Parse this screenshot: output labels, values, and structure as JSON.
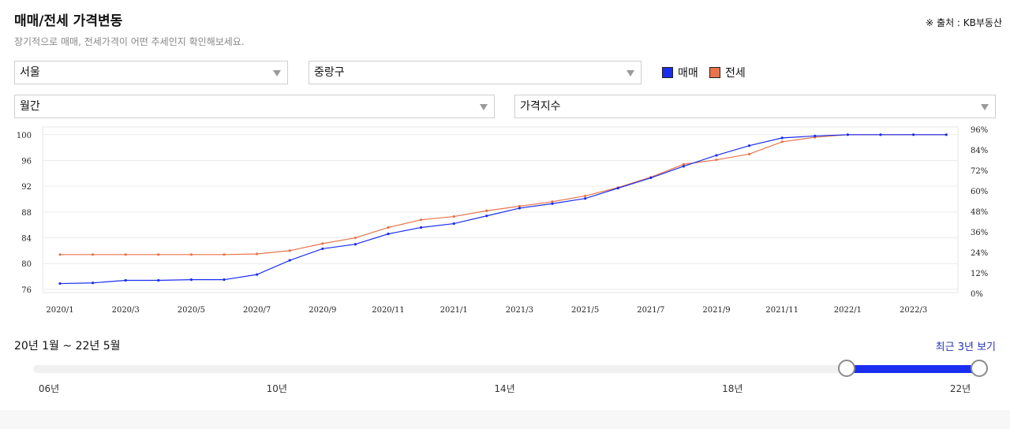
{
  "header": {
    "title": "매매/전세 가격변동",
    "source": "※ 출처 : KB부동산",
    "subtitle": "장기적으로 매매, 전세가격이 어떤 추세인지 확인해보세요."
  },
  "filters": {
    "region": "서울",
    "district": "중랑구",
    "period_type": "월간",
    "metric": "가격지수"
  },
  "legend": [
    {
      "label": "매매",
      "color": "#1a2ef0"
    },
    {
      "label": "전세",
      "color": "#e8744a"
    }
  ],
  "chart_data": {
    "type": "line",
    "x": [
      "2020/1",
      "2020/2",
      "2020/3",
      "2020/4",
      "2020/5",
      "2020/6",
      "2020/7",
      "2020/8",
      "2020/9",
      "2020/10",
      "2020/11",
      "2020/12",
      "2021/1",
      "2021/2",
      "2021/3",
      "2021/4",
      "2021/5",
      "2021/6",
      "2021/7",
      "2021/8",
      "2021/9",
      "2021/10",
      "2021/11",
      "2021/12",
      "2022/1",
      "2022/2",
      "2022/3",
      "2022/4"
    ],
    "x_tick_labels": [
      "2020/1",
      "2020/3",
      "2020/5",
      "2020/7",
      "2020/9",
      "2020/11",
      "2021/1",
      "2021/3",
      "2021/5",
      "2021/7",
      "2021/9",
      "2021/11",
      "2022/1",
      "2022/3"
    ],
    "series": [
      {
        "name": "매매",
        "color": "#1a2ef0",
        "values": [
          76.9,
          77.0,
          77.4,
          77.4,
          77.5,
          77.5,
          78.3,
          80.5,
          82.3,
          83.0,
          84.6,
          85.6,
          86.2,
          87.4,
          88.6,
          89.3,
          90.1,
          91.7,
          93.3,
          95.1,
          96.8,
          98.3,
          99.5,
          99.8,
          100.0,
          100.0,
          100.0,
          100.0
        ]
      },
      {
        "name": "전세",
        "color": "#e8744a",
        "values": [
          81.4,
          81.4,
          81.4,
          81.4,
          81.4,
          81.4,
          81.5,
          82.0,
          83.1,
          84.0,
          85.6,
          86.8,
          87.3,
          88.2,
          88.9,
          89.6,
          90.5,
          91.8,
          93.4,
          95.4,
          96.1,
          97.0,
          98.9,
          99.6,
          100.0,
          100.0,
          100.0,
          100.0
        ]
      }
    ],
    "y_left": {
      "ticks": [
        76,
        80,
        84,
        88,
        92,
        96,
        100
      ],
      "range": [
        75.5,
        101.2
      ]
    },
    "y_right": {
      "ticks": [
        "0%",
        "12%",
        "24%",
        "36%",
        "48%",
        "60%",
        "72%",
        "84%",
        "96%"
      ]
    },
    "grid": "horizontal"
  },
  "range_selector": {
    "period_text": "20년 1월 ~ 22년 5월",
    "recent_link": "최근 3년 보기",
    "labels": [
      "06년",
      "10년",
      "14년",
      "18년",
      "22년"
    ],
    "start_year": 2006,
    "end_year": 2022,
    "selected_start": 2020.0,
    "selected_end": 2022.33
  }
}
